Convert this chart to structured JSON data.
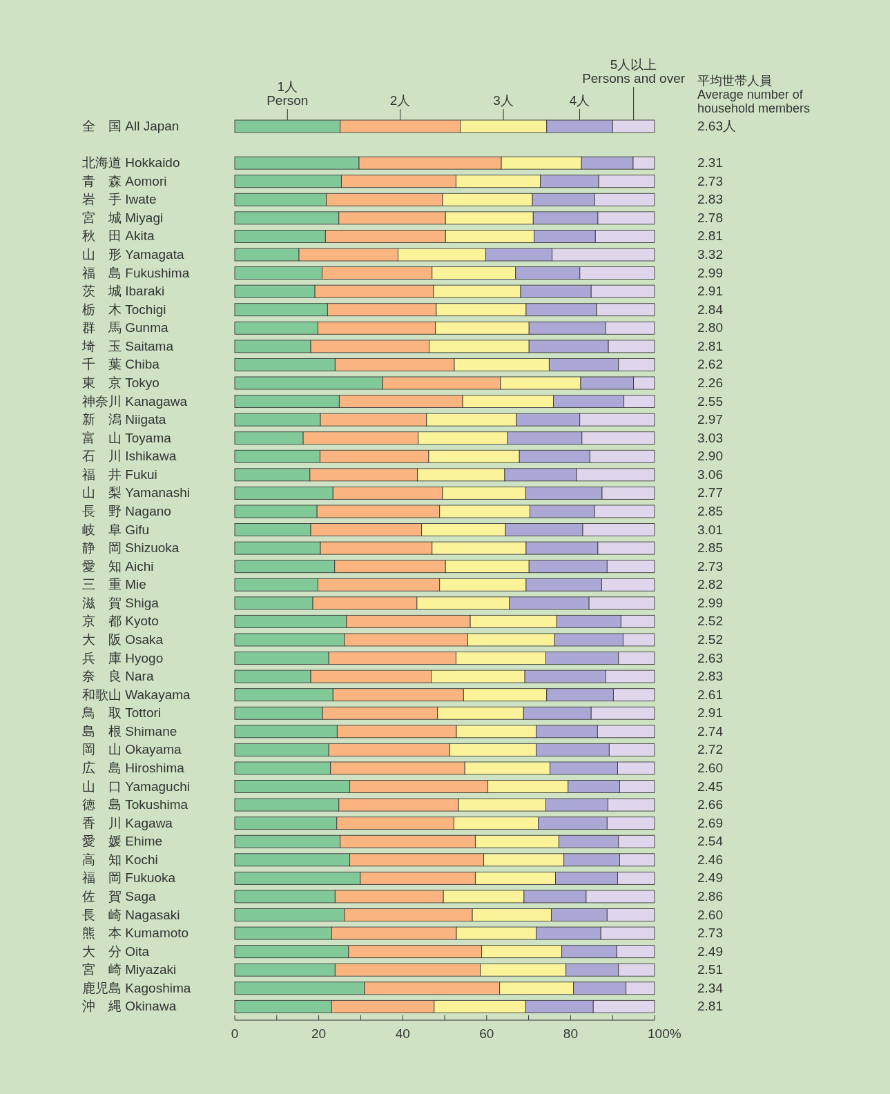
{
  "chart_data": {
    "type": "bar",
    "orientation": "horizontal",
    "stacked": true,
    "legend": "top",
    "categories": [
      "全　国 All Japan",
      null,
      "北海道 Hokkaido",
      "青　森 Aomori",
      "岩　手 Iwate",
      "宮　城 Miyagi",
      "秋　田 Akita",
      "山　形 Yamagata",
      "福　島 Fukushima",
      "茨　城 Ibaraki",
      "栃　木 Tochigi",
      "群　馬 Gunma",
      "埼　玉 Saitama",
      "千　葉 Chiba",
      "東　京 Tokyo",
      "神奈川 Kanagawa",
      "新　潟 Niigata",
      "富　山 Toyama",
      "石　川 Ishikawa",
      "福　井 Fukui",
      "山　梨 Yamanashi",
      "長　野 Nagano",
      "岐　阜 Gifu",
      "静　岡 Shizuoka",
      "愛　知 Aichi",
      "三　重 Mie",
      "滋　賀 Shiga",
      "京　都 Kyoto",
      "大　阪 Osaka",
      "兵　庫 Hyogo",
      "奈　良 Nara",
      "和歌山 Wakayama",
      "鳥　取 Tottori",
      "島　根 Shimane",
      "岡　山 Okayama",
      "広　島 Hiroshima",
      "山　口 Yamaguchi",
      "徳　島 Tokushima",
      "香　川 Kagawa",
      "愛　媛 Ehime",
      "高　知 Kochi",
      "福　岡 Fukuoka",
      "佐　賀 Saga",
      "長　崎 Nagasaki",
      "熊　本 Kumamoto",
      "大　分 Oita",
      "宮　崎 Miyazaki",
      "鹿児島 Kagoshima",
      "沖　縄 Okinawa"
    ],
    "series": [
      {
        "name": "1人\nPerson",
        "color": "#82c99a",
        "values": [
          25.1,
          null,
          29.6,
          25.4,
          21.8,
          24.8,
          21.6,
          15.3,
          20.8,
          19.1,
          22.1,
          19.8,
          18.1,
          23.9,
          35.2,
          24.9,
          20.4,
          16.3,
          20.3,
          17.9,
          23.4,
          19.6,
          18.1,
          20.4,
          23.8,
          19.8,
          18.6,
          26.6,
          26.1,
          22.4,
          18.1,
          23.4,
          20.9,
          24.4,
          22.4,
          22.8,
          27.4,
          24.8,
          24.3,
          25.1,
          27.4,
          29.9,
          23.9,
          26.1,
          23.1,
          27.1,
          23.9,
          30.9,
          23.1
        ]
      },
      {
        "name": "2人",
        "color": "#f9b47f",
        "values": [
          28.6,
          null,
          33.9,
          27.3,
          27.7,
          25.4,
          28.6,
          23.6,
          26.2,
          28.2,
          25.9,
          28.0,
          28.2,
          28.4,
          28.1,
          29.4,
          25.3,
          27.4,
          25.9,
          25.6,
          26.1,
          29.2,
          26.4,
          26.6,
          26.4,
          29.0,
          24.8,
          29.5,
          29.4,
          30.3,
          28.7,
          31.1,
          27.4,
          28.4,
          28.8,
          32.0,
          32.9,
          28.5,
          27.9,
          32.2,
          31.9,
          27.4,
          25.8,
          30.5,
          29.7,
          31.7,
          34.6,
          32.2,
          24.4
        ]
      },
      {
        "name": "3人",
        "color": "#fbf39a",
        "values": [
          20.6,
          null,
          19.1,
          20.1,
          21.4,
          20.9,
          21.1,
          20.9,
          19.9,
          20.8,
          21.4,
          22.3,
          23.8,
          22.6,
          19.1,
          21.6,
          21.4,
          21.3,
          21.6,
          20.8,
          19.8,
          21.5,
          20.0,
          22.4,
          19.9,
          20.6,
          22.0,
          20.6,
          20.7,
          21.4,
          22.3,
          19.8,
          20.5,
          19.0,
          20.6,
          20.3,
          19.1,
          20.8,
          20.1,
          19.9,
          19.1,
          19.1,
          19.2,
          18.8,
          19.0,
          19.1,
          20.4,
          17.6,
          21.8
        ]
      },
      {
        "name": "4人",
        "color": "#aca8d6",
        "values": [
          15.7,
          null,
          12.3,
          13.9,
          14.8,
          15.4,
          14.6,
          15.8,
          15.3,
          16.8,
          16.8,
          18.3,
          18.9,
          16.5,
          12.6,
          16.8,
          15.1,
          17.7,
          16.8,
          17.1,
          18.2,
          15.4,
          18.4,
          17.1,
          18.6,
          18.0,
          19.0,
          15.3,
          16.3,
          17.3,
          19.3,
          15.9,
          16.1,
          14.6,
          17.4,
          16.1,
          12.3,
          14.8,
          16.4,
          14.2,
          13.3,
          14.8,
          14.8,
          13.3,
          15.4,
          13.1,
          12.5,
          12.5,
          16.1
        ]
      },
      {
        "name": "5人以上\nPersons and over",
        "color": "#e0d6ec",
        "values": [
          10.0,
          null,
          5.1,
          13.3,
          14.3,
          13.5,
          14.1,
          24.4,
          17.8,
          15.1,
          13.8,
          11.6,
          11.0,
          8.6,
          5.0,
          7.3,
          17.8,
          17.3,
          15.4,
          18.6,
          12.5,
          14.3,
          17.1,
          13.5,
          11.3,
          12.6,
          15.6,
          8.0,
          7.5,
          8.6,
          11.6,
          9.8,
          15.1,
          13.6,
          10.8,
          8.8,
          8.3,
          11.1,
          11.3,
          8.6,
          8.3,
          8.8,
          16.3,
          11.3,
          12.8,
          9.0,
          8.6,
          6.8,
          14.6
        ]
      }
    ],
    "xlim": [
      0,
      100
    ],
    "xticks": [
      0,
      {
        "value": 10,
        "label": null
      },
      20,
      {
        "value": 30,
        "label": null
      },
      40,
      {
        "value": 50,
        "label": null
      },
      60,
      {
        "value": 70,
        "label": null
      },
      80,
      {
        "value": 90,
        "label": null
      },
      {
        "value": 100,
        "label": "100%"
      }
    ],
    "annotations": [
      "平均世帯人員\nAverage number of\nhousehold members",
      "2.63人",
      "2.31",
      "2.73",
      "2.83",
      "2.78",
      "2.81",
      "3.32",
      "2.99",
      "2.91",
      "2.84",
      "2.80",
      "2.81",
      "2.62",
      "2.26",
      "2.55",
      "2.97",
      "3.03",
      "2.90",
      "3.06",
      "2.77",
      "2.85",
      "3.01",
      "2.85",
      "2.73",
      "2.82",
      "2.99",
      "2.52",
      "2.52",
      "2.63",
      "2.83",
      "2.61",
      "2.91",
      "2.74",
      "2.72",
      "2.60",
      "2.45",
      "2.66",
      "2.69",
      "2.54",
      "2.46",
      "2.49",
      "2.86",
      "2.60",
      "2.73",
      "2.49",
      "2.51",
      "2.34",
      "2.81"
    ]
  }
}
